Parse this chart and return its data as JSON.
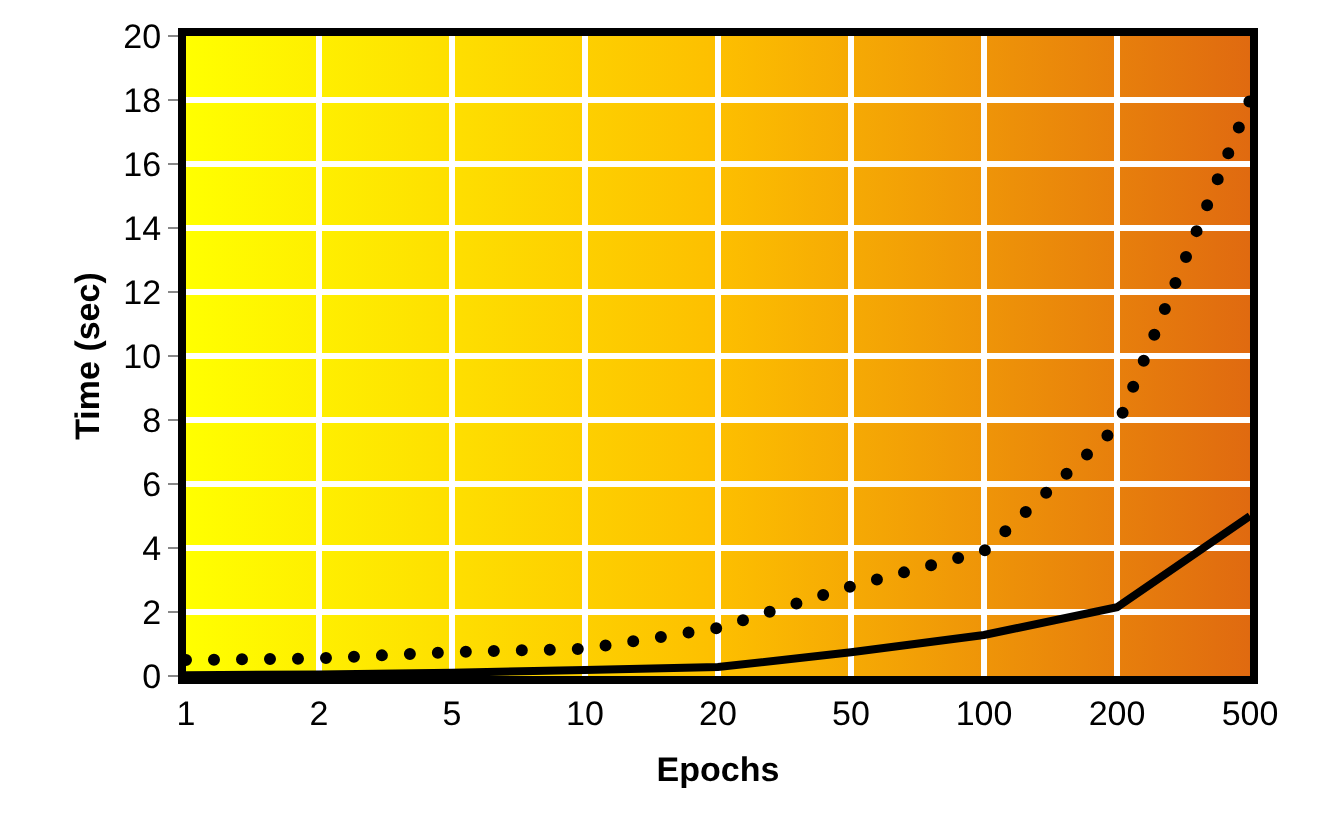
{
  "chart_data": {
    "type": "line",
    "xlabel": "Epochs",
    "ylabel": "Time (sec)",
    "categories": [
      "1",
      "2",
      "5",
      "10",
      "20",
      "50",
      "100",
      "200",
      "500"
    ],
    "series": [
      {
        "color": "#000000",
        "line_style": "dotted",
        "values": [
          0.5,
          0.55,
          0.75,
          0.85,
          1.5,
          2.8,
          3.9,
          7.8,
          18
        ]
      },
      {
        "color": "#000000",
        "line_style": "solid",
        "values": [
          0.02,
          0.05,
          0.1,
          0.19,
          0.28,
          0.74,
          1.28,
          2.15,
          5
        ]
      }
    ],
    "ylim": [
      0,
      20
    ],
    "yticks": [
      0,
      2,
      4,
      6,
      8,
      10,
      12,
      14,
      16,
      18,
      20
    ],
    "grid": true,
    "marker": "none"
  }
}
